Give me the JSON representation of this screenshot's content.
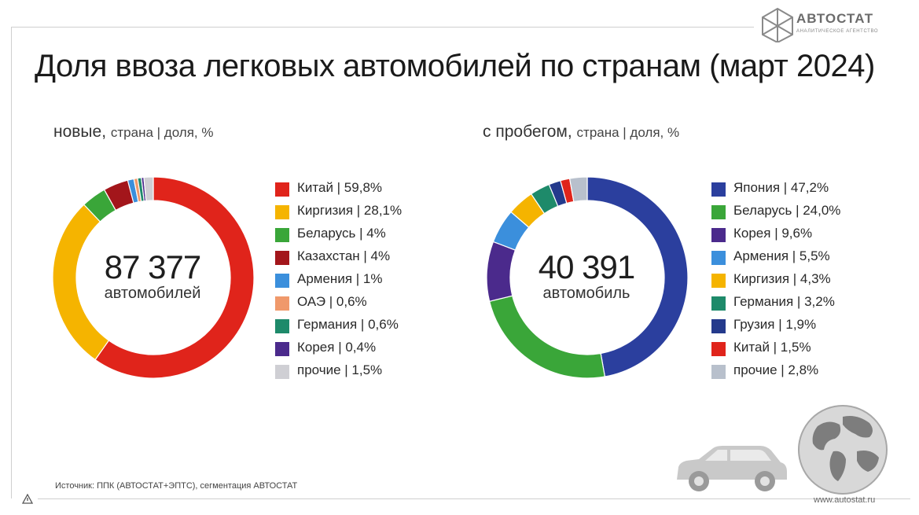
{
  "brand": {
    "name": "АВТОСТАТ",
    "tagline": "АНАЛИТИЧЕСКОЕ АГЕНТСТВО",
    "url": "www.autostat.ru"
  },
  "title": "Доля ввоза легковых автомобилей по странам (март 2024)",
  "source": "Источник: ППК (АВТОСТАТ+ЭПТС), сегментация АВТОСТАТ",
  "chart_data": [
    {
      "type": "pie",
      "subtitle_main": "новые,",
      "subtitle_rest": "страна | доля, %",
      "center_value": "87 377",
      "center_label": "автомобилей",
      "slices": [
        {
          "label": "Китай | 59,8%",
          "value": 59.8,
          "color": "#e0241b"
        },
        {
          "label": "Киргизия | 28,1%",
          "value": 28.1,
          "color": "#f5b400"
        },
        {
          "label": "Беларусь | 4%",
          "value": 4,
          "color": "#3aa639"
        },
        {
          "label": "Казахстан | 4%",
          "value": 4,
          "color": "#a3161b"
        },
        {
          "label": "Армения | 1%",
          "value": 1,
          "color": "#3b8fdc"
        },
        {
          "label": "ОАЭ | 0,6%",
          "value": 0.6,
          "color": "#f0996b"
        },
        {
          "label": "Германия | 0,6%",
          "value": 0.6,
          "color": "#1e8a6a"
        },
        {
          "label": "Корея | 0,4%",
          "value": 0.4,
          "color": "#4b2a8c"
        },
        {
          "label": "прочие | 1,5%",
          "value": 1.5,
          "color": "#cfcfd4"
        }
      ]
    },
    {
      "type": "pie",
      "subtitle_main": "с пробегом,",
      "subtitle_rest": "страна | доля, %",
      "center_value": "40 391",
      "center_label": "автомобиль",
      "slices": [
        {
          "label": "Япония | 47,2%",
          "value": 47.2,
          "color": "#2b3f9e"
        },
        {
          "label": "Беларусь | 24,0%",
          "value": 24.0,
          "color": "#3aa639"
        },
        {
          "label": "Корея | 9,6%",
          "value": 9.6,
          "color": "#4b2a8c"
        },
        {
          "label": "Армения | 5,5%",
          "value": 5.5,
          "color": "#3b8fdc"
        },
        {
          "label": "Киргизия | 4,3%",
          "value": 4.3,
          "color": "#f5b400"
        },
        {
          "label": "Германия | 3,2%",
          "value": 3.2,
          "color": "#1e8a6a"
        },
        {
          "label": "Грузия | 1,9%",
          "value": 1.9,
          "color": "#243a8c"
        },
        {
          "label": "Китай | 1,5%",
          "value": 1.5,
          "color": "#e0241b"
        },
        {
          "label": "прочие | 2,8%",
          "value": 2.8,
          "color": "#b8c0cc"
        }
      ]
    }
  ]
}
